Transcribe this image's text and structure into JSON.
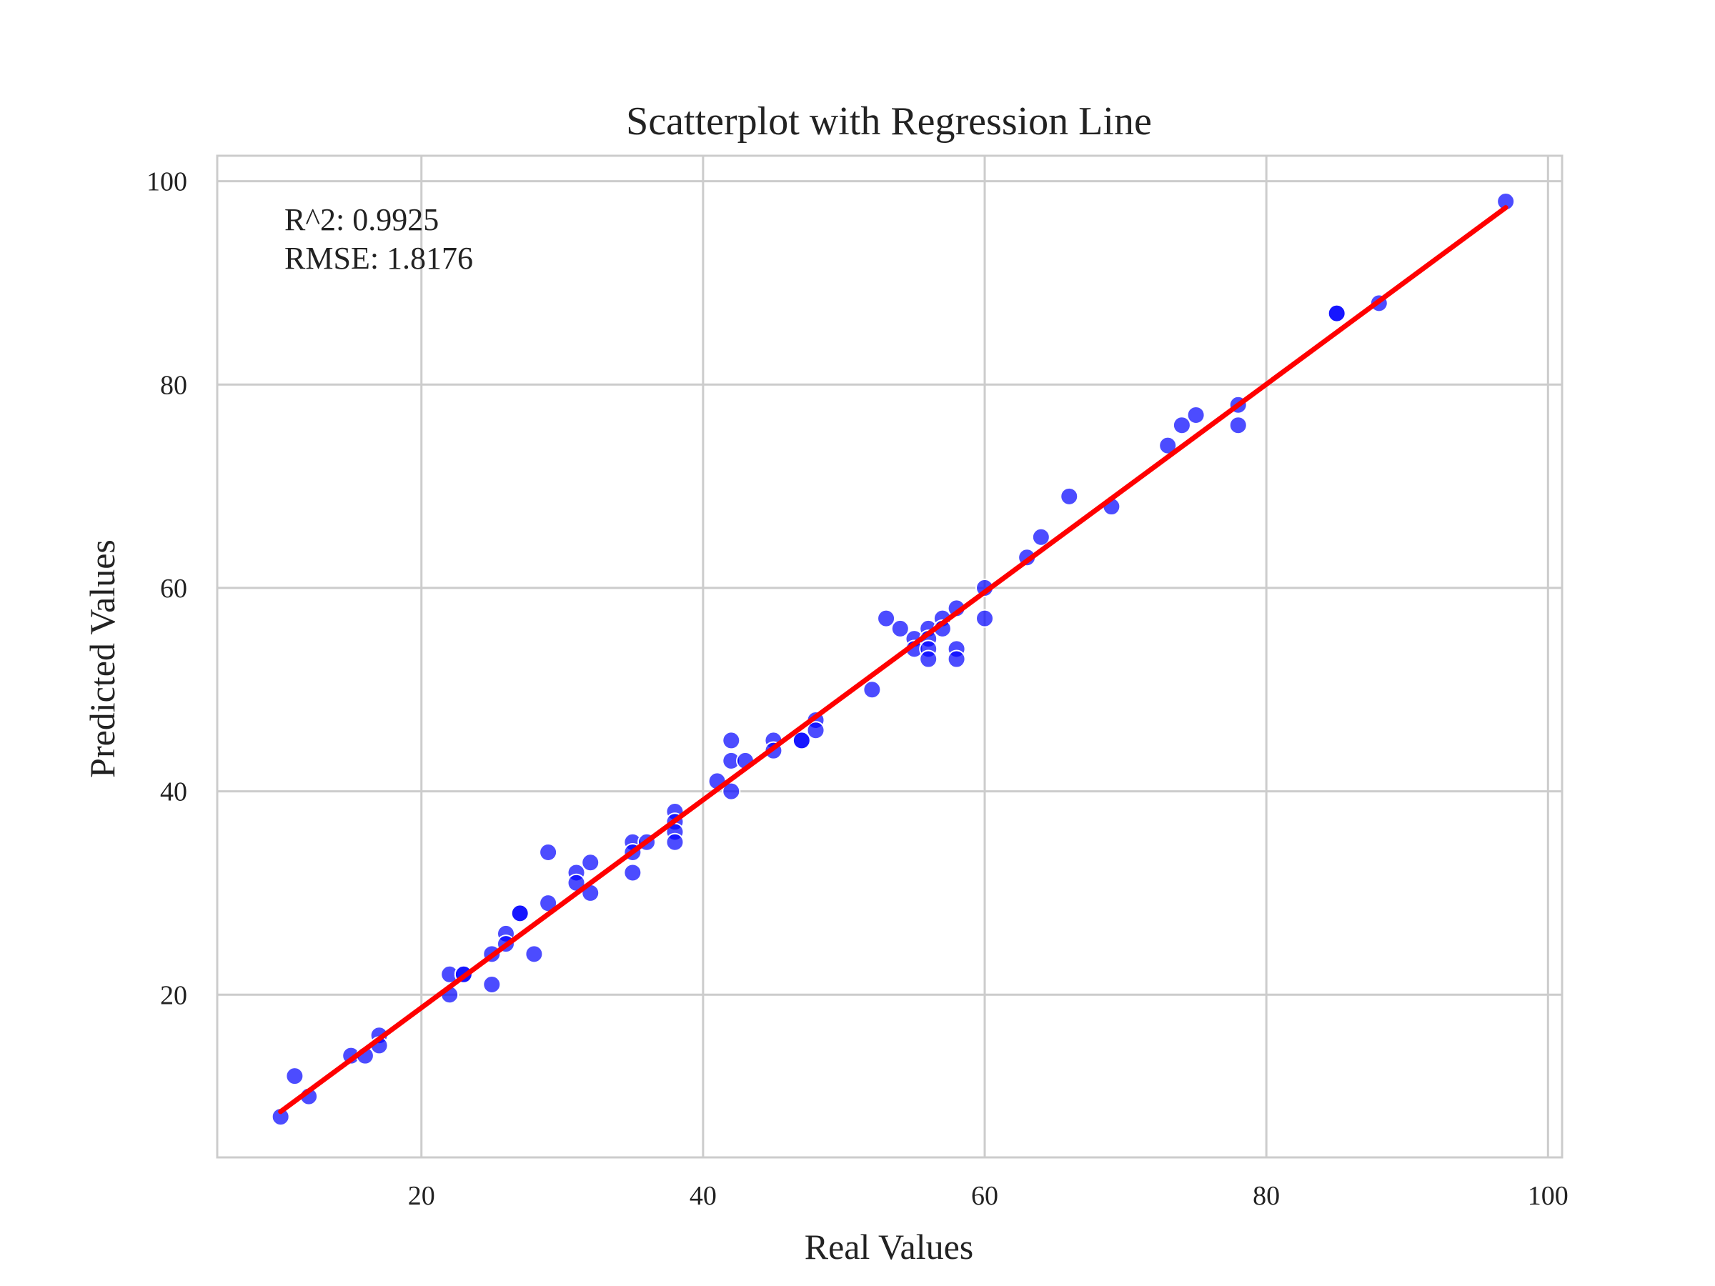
{
  "chart_data": {
    "type": "scatter",
    "title": "Scatterplot with Regression Line",
    "xlabel": "Real Values",
    "ylabel": "Predicted Values",
    "xlim": [
      5.5,
      101
    ],
    "ylim": [
      4,
      102.5
    ],
    "xticks": [
      20,
      40,
      60,
      80,
      100
    ],
    "yticks": [
      20,
      40,
      60,
      80,
      100
    ],
    "grid": true,
    "annotations": [
      "R^2: 0.9925",
      "RMSE: 1.8176"
    ],
    "point_color": "#0000ff",
    "line_color": "#ff0000",
    "grid_color": "#cccccc",
    "points": [
      [
        10,
        8
      ],
      [
        11,
        12
      ],
      [
        12,
        10
      ],
      [
        15,
        14
      ],
      [
        16,
        14
      ],
      [
        17,
        16
      ],
      [
        17,
        15
      ],
      [
        22,
        22
      ],
      [
        22,
        20
      ],
      [
        23,
        22
      ],
      [
        23,
        22
      ],
      [
        25,
        24
      ],
      [
        25,
        21
      ],
      [
        26,
        26
      ],
      [
        26,
        25
      ],
      [
        27,
        28
      ],
      [
        27,
        28
      ],
      [
        28,
        24
      ],
      [
        29,
        34
      ],
      [
        29,
        29
      ],
      [
        31,
        32
      ],
      [
        31,
        31
      ],
      [
        32,
        33
      ],
      [
        32,
        30
      ],
      [
        35,
        35
      ],
      [
        35,
        34
      ],
      [
        35,
        32
      ],
      [
        36,
        35
      ],
      [
        38,
        38
      ],
      [
        38,
        37
      ],
      [
        38,
        36
      ],
      [
        38,
        35
      ],
      [
        41,
        41
      ],
      [
        42,
        45
      ],
      [
        42,
        43
      ],
      [
        42,
        40
      ],
      [
        43,
        43
      ],
      [
        45,
        45
      ],
      [
        45,
        44
      ],
      [
        47,
        45
      ],
      [
        47,
        45
      ],
      [
        48,
        47
      ],
      [
        48,
        46
      ],
      [
        52,
        50
      ],
      [
        53,
        57
      ],
      [
        54,
        56
      ],
      [
        55,
        55
      ],
      [
        55,
        54
      ],
      [
        56,
        56
      ],
      [
        56,
        55
      ],
      [
        56,
        54
      ],
      [
        56,
        53
      ],
      [
        57,
        57
      ],
      [
        57,
        56
      ],
      [
        58,
        58
      ],
      [
        58,
        54
      ],
      [
        58,
        53
      ],
      [
        60,
        60
      ],
      [
        60,
        57
      ],
      [
        63,
        63
      ],
      [
        64,
        65
      ],
      [
        66,
        69
      ],
      [
        69,
        68
      ],
      [
        73,
        74
      ],
      [
        74,
        76
      ],
      [
        75,
        77
      ],
      [
        78,
        78
      ],
      [
        78,
        76
      ],
      [
        85,
        87
      ],
      [
        85,
        87
      ],
      [
        88,
        88
      ],
      [
        97,
        98
      ]
    ],
    "regression": {
      "x": [
        10,
        97
      ],
      "y": [
        8.5,
        97.4
      ]
    }
  }
}
